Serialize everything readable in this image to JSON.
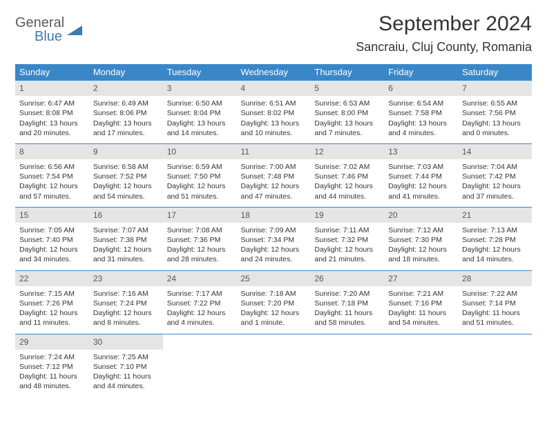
{
  "logo": {
    "general": "General",
    "blue": "Blue"
  },
  "title": "September 2024",
  "location": "Sancraiu, Cluj County, Romania",
  "colors": {
    "header_bg": "#3a87c7",
    "header_text": "#ffffff",
    "daynum_bg": "#e5e5e5",
    "border": "#3a87c7",
    "text": "#333333",
    "logo_gray": "#5a5a5a",
    "logo_blue": "#3a7ab5"
  },
  "weekdays": [
    "Sunday",
    "Monday",
    "Tuesday",
    "Wednesday",
    "Thursday",
    "Friday",
    "Saturday"
  ],
  "weeks": [
    [
      {
        "n": "1",
        "sr": "6:47 AM",
        "ss": "8:08 PM",
        "dl": "13 hours and 20 minutes."
      },
      {
        "n": "2",
        "sr": "6:49 AM",
        "ss": "8:06 PM",
        "dl": "13 hours and 17 minutes."
      },
      {
        "n": "3",
        "sr": "6:50 AM",
        "ss": "8:04 PM",
        "dl": "13 hours and 14 minutes."
      },
      {
        "n": "4",
        "sr": "6:51 AM",
        "ss": "8:02 PM",
        "dl": "13 hours and 10 minutes."
      },
      {
        "n": "5",
        "sr": "6:53 AM",
        "ss": "8:00 PM",
        "dl": "13 hours and 7 minutes."
      },
      {
        "n": "6",
        "sr": "6:54 AM",
        "ss": "7:58 PM",
        "dl": "13 hours and 4 minutes."
      },
      {
        "n": "7",
        "sr": "6:55 AM",
        "ss": "7:56 PM",
        "dl": "13 hours and 0 minutes."
      }
    ],
    [
      {
        "n": "8",
        "sr": "6:56 AM",
        "ss": "7:54 PM",
        "dl": "12 hours and 57 minutes."
      },
      {
        "n": "9",
        "sr": "6:58 AM",
        "ss": "7:52 PM",
        "dl": "12 hours and 54 minutes."
      },
      {
        "n": "10",
        "sr": "6:59 AM",
        "ss": "7:50 PM",
        "dl": "12 hours and 51 minutes."
      },
      {
        "n": "11",
        "sr": "7:00 AM",
        "ss": "7:48 PM",
        "dl": "12 hours and 47 minutes."
      },
      {
        "n": "12",
        "sr": "7:02 AM",
        "ss": "7:46 PM",
        "dl": "12 hours and 44 minutes."
      },
      {
        "n": "13",
        "sr": "7:03 AM",
        "ss": "7:44 PM",
        "dl": "12 hours and 41 minutes."
      },
      {
        "n": "14",
        "sr": "7:04 AM",
        "ss": "7:42 PM",
        "dl": "12 hours and 37 minutes."
      }
    ],
    [
      {
        "n": "15",
        "sr": "7:05 AM",
        "ss": "7:40 PM",
        "dl": "12 hours and 34 minutes."
      },
      {
        "n": "16",
        "sr": "7:07 AM",
        "ss": "7:38 PM",
        "dl": "12 hours and 31 minutes."
      },
      {
        "n": "17",
        "sr": "7:08 AM",
        "ss": "7:36 PM",
        "dl": "12 hours and 28 minutes."
      },
      {
        "n": "18",
        "sr": "7:09 AM",
        "ss": "7:34 PM",
        "dl": "12 hours and 24 minutes."
      },
      {
        "n": "19",
        "sr": "7:11 AM",
        "ss": "7:32 PM",
        "dl": "12 hours and 21 minutes."
      },
      {
        "n": "20",
        "sr": "7:12 AM",
        "ss": "7:30 PM",
        "dl": "12 hours and 18 minutes."
      },
      {
        "n": "21",
        "sr": "7:13 AM",
        "ss": "7:28 PM",
        "dl": "12 hours and 14 minutes."
      }
    ],
    [
      {
        "n": "22",
        "sr": "7:15 AM",
        "ss": "7:26 PM",
        "dl": "12 hours and 11 minutes."
      },
      {
        "n": "23",
        "sr": "7:16 AM",
        "ss": "7:24 PM",
        "dl": "12 hours and 8 minutes."
      },
      {
        "n": "24",
        "sr": "7:17 AM",
        "ss": "7:22 PM",
        "dl": "12 hours and 4 minutes."
      },
      {
        "n": "25",
        "sr": "7:18 AM",
        "ss": "7:20 PM",
        "dl": "12 hours and 1 minute."
      },
      {
        "n": "26",
        "sr": "7:20 AM",
        "ss": "7:18 PM",
        "dl": "11 hours and 58 minutes."
      },
      {
        "n": "27",
        "sr": "7:21 AM",
        "ss": "7:16 PM",
        "dl": "11 hours and 54 minutes."
      },
      {
        "n": "28",
        "sr": "7:22 AM",
        "ss": "7:14 PM",
        "dl": "11 hours and 51 minutes."
      }
    ],
    [
      {
        "n": "29",
        "sr": "7:24 AM",
        "ss": "7:12 PM",
        "dl": "11 hours and 48 minutes."
      },
      {
        "n": "30",
        "sr": "7:25 AM",
        "ss": "7:10 PM",
        "dl": "11 hours and 44 minutes."
      },
      null,
      null,
      null,
      null,
      null
    ]
  ],
  "labels": {
    "sunrise": "Sunrise: ",
    "sunset": "Sunset: ",
    "daylight": "Daylight: "
  }
}
